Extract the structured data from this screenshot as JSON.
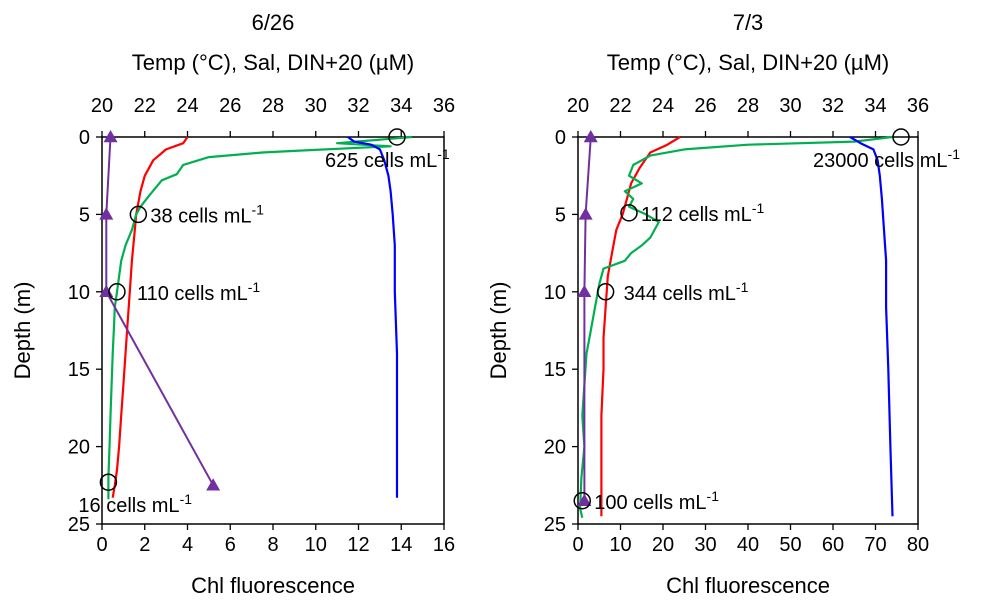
{
  "chart_data": [
    {
      "type": "line",
      "title": "6/26",
      "xlabel_top": "Temp (°C), Sal, DIN+20 (µM)",
      "xlabel_bottom": "Chl fluorescence",
      "ylabel": "Depth (m)",
      "ylim": [
        0,
        25
      ],
      "yticks": [
        0,
        5,
        10,
        15,
        20,
        25
      ],
      "xlim_top": [
        20,
        36
      ],
      "xticks_top": [
        20,
        22,
        24,
        26,
        28,
        30,
        32,
        34,
        36
      ],
      "xlim_bottom": [
        0,
        16
      ],
      "xticks_bottom": [
        0,
        2,
        4,
        6,
        8,
        10,
        12,
        14,
        16
      ],
      "grid": false,
      "series": [
        {
          "color": "#ff0000",
          "axis": "top",
          "points": [
            [
              24.0,
              0.0
            ],
            [
              23.8,
              0.4
            ],
            [
              23.0,
              0.8
            ],
            [
              22.4,
              1.5
            ],
            [
              22.0,
              2.5
            ],
            [
              21.8,
              3.5
            ],
            [
              21.6,
              5.0
            ],
            [
              21.5,
              6.5
            ],
            [
              21.4,
              8.0
            ],
            [
              21.3,
              10.0
            ],
            [
              21.2,
              12.0
            ],
            [
              21.1,
              14.0
            ],
            [
              21.0,
              16.0
            ],
            [
              20.9,
              18.0
            ],
            [
              20.8,
              20.0
            ],
            [
              20.7,
              21.5
            ],
            [
              20.6,
              22.5
            ],
            [
              20.5,
              23.3
            ]
          ]
        },
        {
          "color": "#00b050",
          "axis": "bottom",
          "points": [
            [
              14.5,
              0.0
            ],
            [
              11.0,
              0.4
            ],
            [
              13.5,
              0.6
            ],
            [
              9.0,
              0.9
            ],
            [
              7.5,
              1.0
            ],
            [
              5.0,
              1.3
            ],
            [
              3.8,
              1.8
            ],
            [
              3.5,
              2.4
            ],
            [
              2.8,
              2.8
            ],
            [
              2.5,
              3.3
            ],
            [
              2.2,
              3.8
            ],
            [
              1.8,
              4.5
            ],
            [
              1.6,
              5.0
            ],
            [
              1.4,
              6.0
            ],
            [
              1.1,
              7.0
            ],
            [
              0.9,
              8.0
            ],
            [
              0.8,
              9.0
            ],
            [
              0.7,
              10.0
            ],
            [
              0.6,
              11.0
            ],
            [
              0.55,
              12.5
            ],
            [
              0.5,
              14.0
            ],
            [
              0.45,
              16.0
            ],
            [
              0.4,
              18.0
            ],
            [
              0.35,
              20.0
            ],
            [
              0.3,
              22.0
            ],
            [
              0.3,
              23.4
            ]
          ]
        },
        {
          "color": "#0000ff",
          "axis": "top",
          "points": [
            [
              31.5,
              0.0
            ],
            [
              31.8,
              0.3
            ],
            [
              32.6,
              0.5
            ],
            [
              33.0,
              0.8
            ],
            [
              33.2,
              1.5
            ],
            [
              33.4,
              2.5
            ],
            [
              33.5,
              3.5
            ],
            [
              33.6,
              5.0
            ],
            [
              33.7,
              7.0
            ],
            [
              33.7,
              10.0
            ],
            [
              33.8,
              14.0
            ],
            [
              33.8,
              18.0
            ],
            [
              33.8,
              23.3
            ]
          ]
        },
        {
          "color": "#7030a0",
          "axis": "bottom",
          "marker": "triangle",
          "points": [
            [
              0.4,
              0.0
            ],
            [
              0.2,
              5.0
            ],
            [
              0.2,
              10.0
            ],
            [
              5.2,
              22.5
            ]
          ]
        }
      ],
      "samples": [
        {
          "x": 13.8,
          "y": 0.0,
          "label_main": "625 cells mL",
          "label_sup": "-1"
        },
        {
          "x": 1.7,
          "y": 5.0,
          "label_main": "38 cells mL",
          "label_sup": "-1"
        },
        {
          "x": 0.7,
          "y": 10.0,
          "label_main": "110 cells mL",
          "label_sup": "-1"
        },
        {
          "x": 0.3,
          "y": 22.3,
          "label_main": "16 cells mL",
          "label_sup": "-1"
        }
      ]
    },
    {
      "type": "line",
      "title": "7/3",
      "xlabel_top": "Temp (°C), Sal, DIN+20 (µM)",
      "xlabel_bottom": "Chl fluorescence",
      "ylabel": "Depth (m)",
      "ylim": [
        0,
        25
      ],
      "yticks": [
        0,
        5,
        10,
        15,
        20,
        25
      ],
      "xlim_top": [
        20,
        36
      ],
      "xticks_top": [
        20,
        22,
        24,
        26,
        28,
        30,
        32,
        34,
        36
      ],
      "xlim_bottom": [
        0,
        80
      ],
      "xticks_bottom": [
        0,
        10,
        20,
        30,
        40,
        50,
        60,
        70,
        80
      ],
      "grid": false,
      "series": [
        {
          "color": "#ff0000",
          "axis": "top",
          "points": [
            [
              24.8,
              0.0
            ],
            [
              24.2,
              0.5
            ],
            [
              23.4,
              1.0
            ],
            [
              22.9,
              2.0
            ],
            [
              22.5,
              3.0
            ],
            [
              22.3,
              4.0
            ],
            [
              22.1,
              5.0
            ],
            [
              21.8,
              6.0
            ],
            [
              21.6,
              7.5
            ],
            [
              21.4,
              9.0
            ],
            [
              21.3,
              11.0
            ],
            [
              21.2,
              13.0
            ],
            [
              21.2,
              15.0
            ],
            [
              21.1,
              18.0
            ],
            [
              21.1,
              21.0
            ],
            [
              21.1,
              24.5
            ]
          ]
        },
        {
          "color": "#00b050",
          "axis": "bottom",
          "points": [
            [
              74.0,
              0.0
            ],
            [
              65.0,
              0.3
            ],
            [
              40.0,
              0.5
            ],
            [
              25.0,
              0.8
            ],
            [
              17.0,
              1.2
            ],
            [
              13.0,
              1.8
            ],
            [
              12.0,
              2.5
            ],
            [
              15.0,
              3.0
            ],
            [
              11.0,
              3.5
            ],
            [
              13.0,
              4.0
            ],
            [
              12.0,
              4.5
            ],
            [
              16.0,
              5.0
            ],
            [
              19.0,
              5.5
            ],
            [
              18.0,
              6.0
            ],
            [
              17.0,
              6.5
            ],
            [
              15.0,
              7.0
            ],
            [
              12.5,
              7.5
            ],
            [
              11.0,
              8.0
            ],
            [
              6.0,
              8.5
            ],
            [
              5.0,
              9.5
            ],
            [
              4.0,
              11.0
            ],
            [
              3.0,
              12.5
            ],
            [
              2.0,
              14.0
            ],
            [
              1.5,
              16.0
            ],
            [
              1.0,
              18.0
            ],
            [
              1.5,
              20.0
            ],
            [
              0.8,
              22.0
            ],
            [
              0.5,
              24.0
            ],
            [
              1.0,
              24.6
            ]
          ]
        },
        {
          "color": "#0000ff",
          "axis": "top",
          "points": [
            [
              32.8,
              0.0
            ],
            [
              33.3,
              0.4
            ],
            [
              33.9,
              0.8
            ],
            [
              34.1,
              1.5
            ],
            [
              34.2,
              2.5
            ],
            [
              34.3,
              4.0
            ],
            [
              34.4,
              6.0
            ],
            [
              34.5,
              8.0
            ],
            [
              34.5,
              11.0
            ],
            [
              34.6,
              15.0
            ],
            [
              34.7,
              20.0
            ],
            [
              34.8,
              24.5
            ]
          ]
        },
        {
          "color": "#7030a0",
          "axis": "bottom",
          "marker": "triangle",
          "points": [
            [
              3.0,
              0.0
            ],
            [
              1.8,
              5.0
            ],
            [
              1.5,
              10.0
            ],
            [
              1.5,
              23.5
            ]
          ]
        }
      ],
      "samples": [
        {
          "x": 76.0,
          "y": 0.0,
          "label_main": "23000 cells mL",
          "label_sup": "-1"
        },
        {
          "x": 12.0,
          "y": 4.9,
          "label_main": "112 cells mL",
          "label_sup": "-1"
        },
        {
          "x": 6.5,
          "y": 10.0,
          "label_main": "344 cells mL",
          "label_sup": "-1"
        },
        {
          "x": 1.0,
          "y": 23.5,
          "label_main": "100 cells mL",
          "label_sup": "-1"
        }
      ]
    }
  ]
}
